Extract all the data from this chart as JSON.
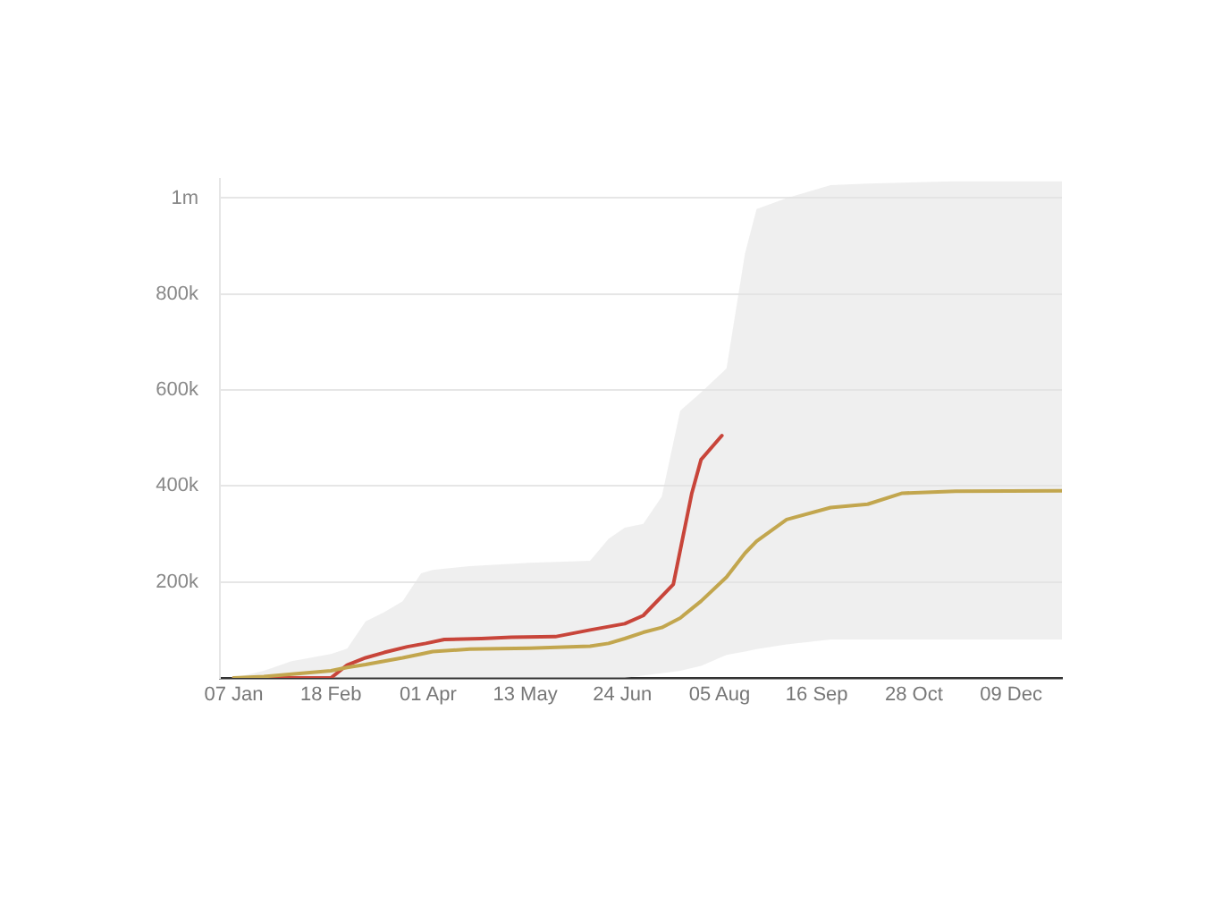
{
  "chart_data": {
    "type": "line",
    "grid": "y",
    "legend": false,
    "xlim": [
      "--01-01",
      "--12-31"
    ],
    "xticks": [
      {
        "value": "--01-07",
        "label": "07 Jan"
      },
      {
        "value": "--02-18",
        "label": "18 Feb"
      },
      {
        "value": "--04-01",
        "label": "01 Apr"
      },
      {
        "value": "--05-13",
        "label": "13 May"
      },
      {
        "value": "--06-24",
        "label": "24 Jun"
      },
      {
        "value": "--08-05",
        "label": "05 Aug"
      },
      {
        "value": "--09-16",
        "label": "16 Sep"
      },
      {
        "value": "--10-28",
        "label": "28 Oct"
      },
      {
        "value": "--12-09",
        "label": "09 Dec"
      }
    ],
    "ylim": [
      0,
      1040000
    ],
    "yticks": [
      {
        "value": 0,
        "label": null
      },
      {
        "value": 200000,
        "label": "200k"
      },
      {
        "value": 400000,
        "label": "400k"
      },
      {
        "value": 600000,
        "label": "600k"
      },
      {
        "value": 800000,
        "label": "800k"
      },
      {
        "value": 1000000,
        "label": "1m"
      }
    ],
    "series": [
      {
        "color": "#c2a64e",
        "x": [
          "--01-07",
          "--01-20",
          "--02-01",
          "--02-18",
          "--02-25",
          "--03-05",
          "--03-13",
          "--03-21",
          "--03-29",
          "--04-03",
          "--04-19",
          "--05-15",
          "--06-10",
          "--06-18",
          "--06-25",
          "--07-03",
          "--07-11",
          "--07-19",
          "--07-28",
          "--08-08",
          "--08-16",
          "--08-21",
          "--09-03",
          "--09-22",
          "--10-08",
          "--10-23",
          "--11-15",
          "--12-31"
        ],
        "values": [
          0,
          3000,
          8000,
          15000,
          22000,
          28000,
          35000,
          42000,
          50000,
          55000,
          60000,
          62000,
          66000,
          72000,
          82000,
          95000,
          105000,
          125000,
          160000,
          210000,
          260000,
          285000,
          330000,
          355000,
          362000,
          385000,
          389000,
          390000
        ],
        "lower": [
          0,
          0,
          0,
          0,
          0,
          0,
          0,
          0,
          0,
          0,
          0,
          0,
          0,
          0,
          0,
          5000,
          10000,
          15000,
          25000,
          48000,
          55000,
          60000,
          70000,
          80000,
          80000,
          80000,
          80000,
          80000
        ],
        "upper": [
          0,
          15000,
          35000,
          50000,
          61000,
          118000,
          137000,
          160000,
          218000,
          225000,
          233000,
          240000,
          244000,
          290000,
          313000,
          321000,
          378000,
          557000,
          595000,
          645000,
          885000,
          977000,
          1000000,
          1027000,
          1030000,
          1032000,
          1035000,
          1035000
        ]
      },
      {
        "color": "#c8453a",
        "x": [
          "--01-07",
          "--02-18",
          "--02-25",
          "--03-05",
          "--03-13",
          "--03-23",
          "--03-31",
          "--04-08",
          "--04-24",
          "--05-07",
          "--05-26",
          "--06-10",
          "--06-25",
          "--07-03",
          "--07-16",
          "--07-24",
          "--07-28",
          "--08-06"
        ],
        "values": [
          0,
          0,
          27000,
          42000,
          53000,
          65000,
          72000,
          80000,
          82000,
          85000,
          86000,
          100000,
          113000,
          130000,
          195000,
          385000,
          455000,
          505000
        ]
      }
    ]
  }
}
